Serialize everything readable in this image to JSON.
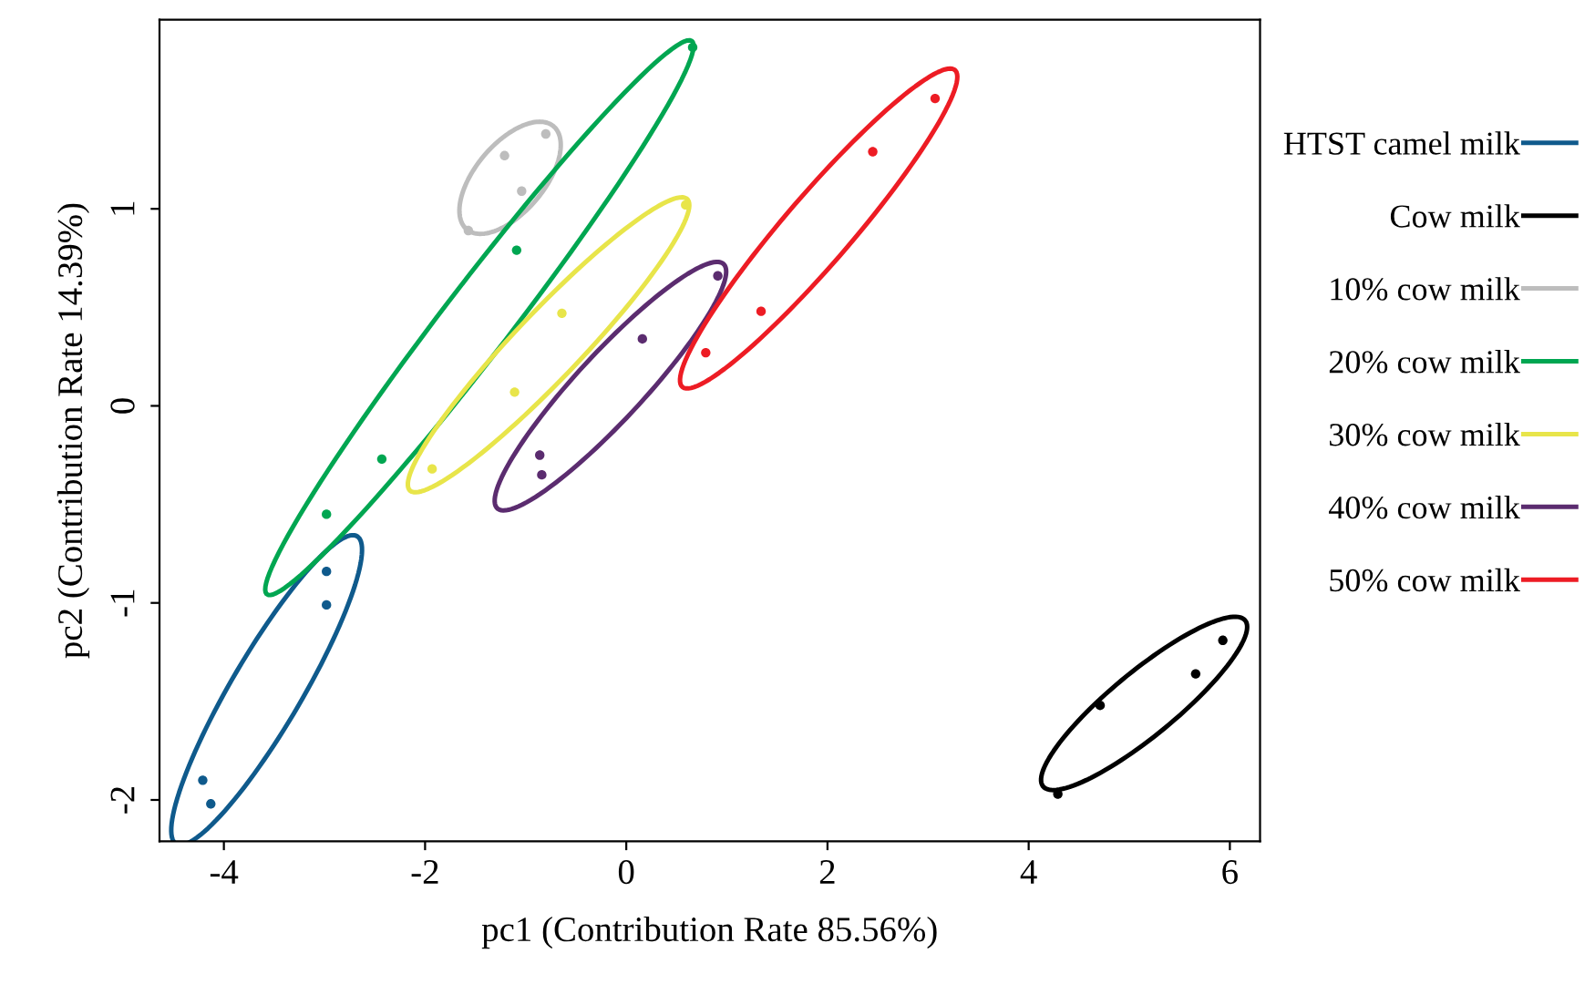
{
  "chart_data": {
    "type": "scatter",
    "xlabel": "pc1 (Contribution Rate 85.56%)",
    "ylabel": "pc2 (Contribution Rate 14.39%)",
    "xlim": [
      -4.64,
      6.3
    ],
    "ylim": [
      -2.21,
      1.96
    ],
    "xticks": [
      -4,
      -2,
      0,
      2,
      4,
      6
    ],
    "yticks": [
      -2,
      -1,
      0,
      1
    ],
    "grid": false,
    "legend": "right",
    "marker": "circle",
    "series": [
      {
        "name": "HTST camel milk",
        "color": "#0f5a8c",
        "x": [
          -2.98,
          -2.98,
          -4.21,
          -4.13
        ],
        "values": [
          -0.84,
          -1.01,
          -1.9,
          -2.02
        ]
      },
      {
        "name": "Cow milk",
        "color": "#000000",
        "x": [
          4.29,
          4.71,
          5.66,
          5.93
        ],
        "values": [
          -1.97,
          -1.52,
          -1.36,
          -1.19
        ]
      },
      {
        "name": "10% cow milk",
        "color": "#bdbdbd",
        "x": [
          -1.57,
          -1.21,
          -1.04,
          -0.8
        ],
        "values": [
          0.89,
          1.27,
          1.09,
          1.38
        ]
      },
      {
        "name": "20% cow milk",
        "color": "#00a651",
        "x": [
          -2.98,
          -2.43,
          -1.09,
          0.66
        ],
        "values": [
          -0.55,
          -0.27,
          0.79,
          1.82
        ]
      },
      {
        "name": "30% cow milk",
        "color": "#e8e54a",
        "x": [
          -1.93,
          -1.11,
          -0.64,
          0.59
        ],
        "values": [
          -0.32,
          0.07,
          0.47,
          1.02
        ]
      },
      {
        "name": "40% cow milk",
        "color": "#5b2c6f",
        "x": [
          -0.86,
          -0.84,
          0.16,
          0.91
        ],
        "values": [
          -0.25,
          -0.35,
          0.34,
          0.66
        ]
      },
      {
        "name": "50% cow milk",
        "color": "#ed1c24",
        "x": [
          0.79,
          1.34,
          2.45,
          3.07
        ],
        "values": [
          0.27,
          0.48,
          1.29,
          1.56
        ]
      }
    ]
  }
}
